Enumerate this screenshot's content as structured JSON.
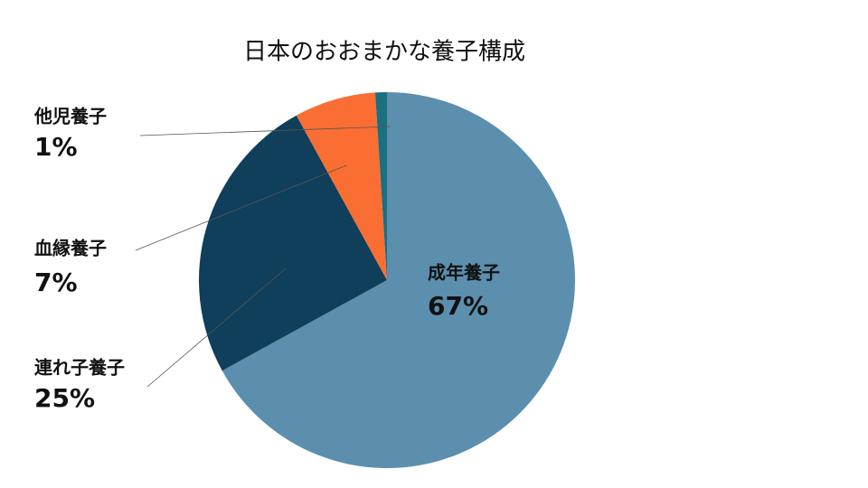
{
  "chart_data": {
    "type": "pie",
    "title": "日本のおおまかな養子構成",
    "categories": [
      "成年養子",
      "連れ子養子",
      "血縁養子",
      "他児養子"
    ],
    "values": [
      67,
      25,
      7,
      1
    ],
    "value_labels": [
      "67%",
      "25%",
      "7%",
      "1%"
    ],
    "colors": [
      "#5b8fad",
      "#0f3f5a",
      "#fa6e33",
      "#1a6f80"
    ]
  }
}
